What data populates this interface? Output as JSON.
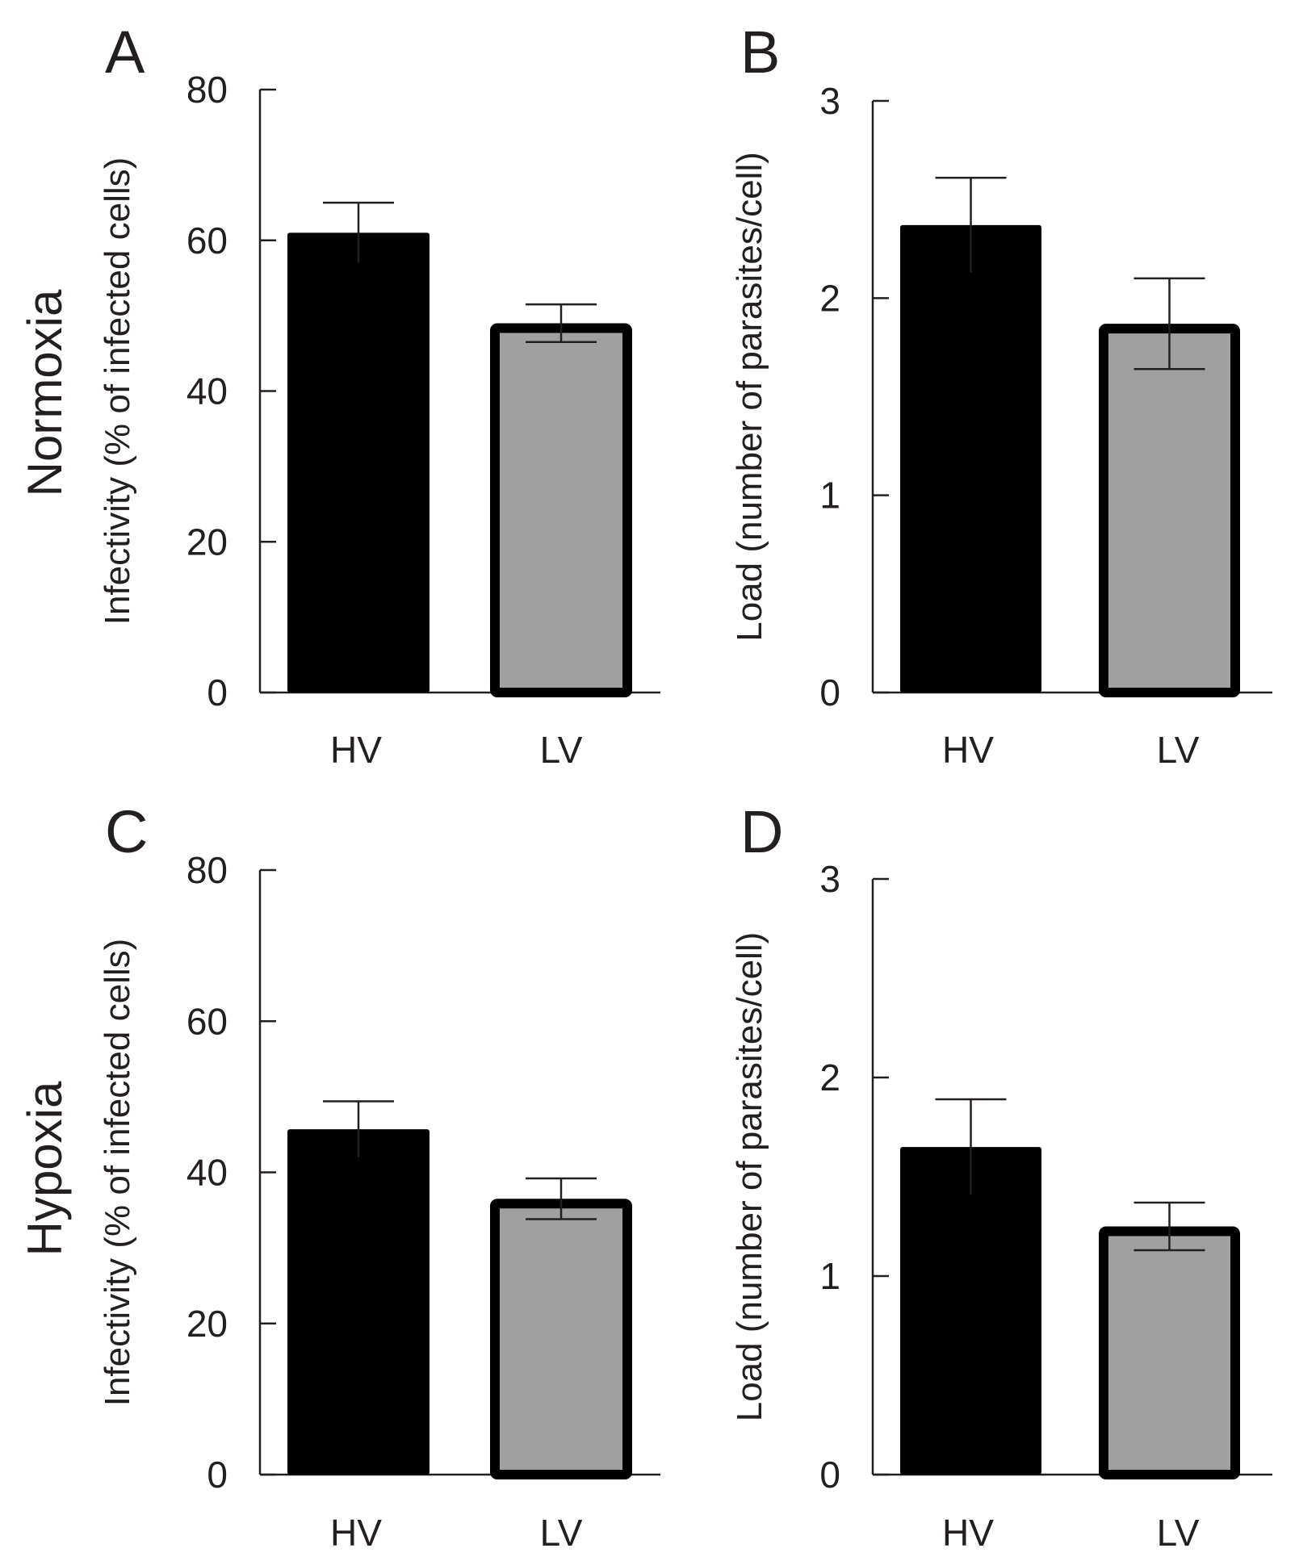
{
  "figure": {
    "row_labels": [
      "Normoxia",
      "Hypoxia"
    ]
  },
  "chart_data": [
    {
      "type": "bar",
      "panel": "A",
      "condition": "Normoxia",
      "categories": [
        "HV",
        "LV"
      ],
      "values": [
        61,
        49
      ],
      "errors": [
        4,
        2.5
      ],
      "ylabel": "Infectivity (% of infected cells)",
      "ylim": [
        0,
        80
      ],
      "yticks": [
        "0",
        "20",
        "40",
        "60",
        "80"
      ],
      "colors": [
        "#000000",
        "#a0a0a0"
      ]
    },
    {
      "type": "bar",
      "panel": "B",
      "condition": "Normoxia",
      "categories": [
        "HV",
        "LV"
      ],
      "values": [
        2.37,
        1.87
      ],
      "errors": [
        0.24,
        0.23
      ],
      "ylabel": "Load (number of parasites/cell)",
      "ylim": [
        0,
        3
      ],
      "yticks": [
        "0",
        "1",
        "2",
        "3"
      ],
      "colors": [
        "#000000",
        "#a0a0a0"
      ]
    },
    {
      "type": "bar",
      "panel": "C",
      "condition": "Hypoxia",
      "categories": [
        "HV",
        "LV"
      ],
      "values": [
        45.7,
        36.5
      ],
      "errors": [
        3.7,
        2.7
      ],
      "ylabel": "Infectivity (% of infected cells)",
      "ylim": [
        0,
        80
      ],
      "yticks": [
        "0",
        "20",
        "40",
        "60",
        "80"
      ],
      "colors": [
        "#000000",
        "#a0a0a0"
      ]
    },
    {
      "type": "bar",
      "panel": "D",
      "condition": "Hypoxia",
      "categories": [
        "HV",
        "LV"
      ],
      "values": [
        1.65,
        1.25
      ],
      "errors": [
        0.24,
        0.12
      ],
      "ylabel": "Load (number of parasites/cell)",
      "ylim": [
        0,
        3
      ],
      "yticks": [
        "0",
        "1",
        "2",
        "3"
      ],
      "colors": [
        "#000000",
        "#a0a0a0"
      ]
    }
  ]
}
